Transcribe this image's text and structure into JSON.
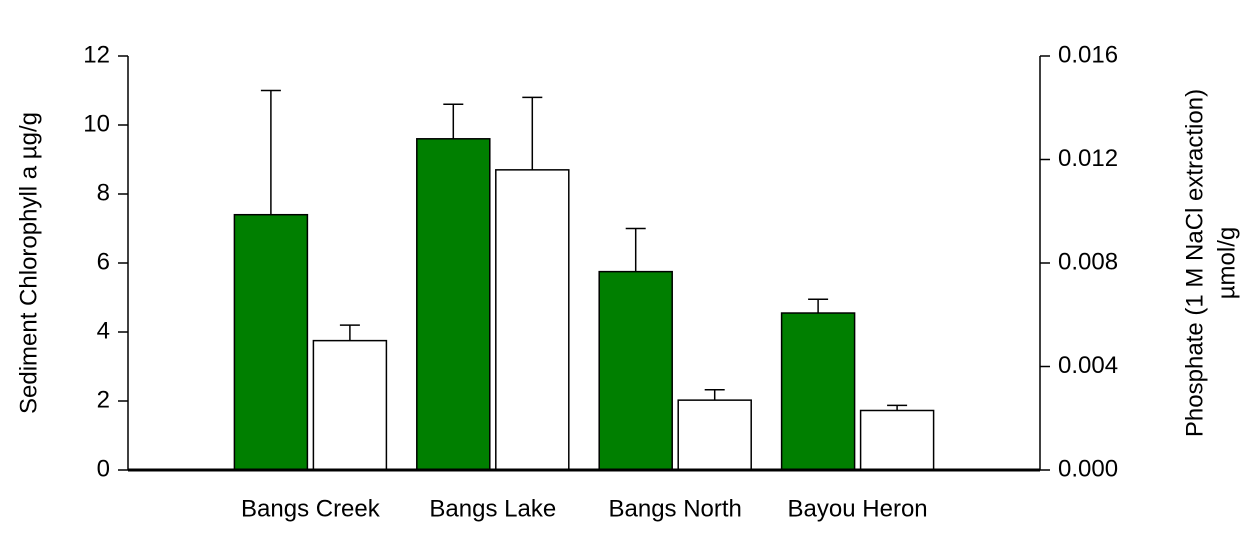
{
  "chart_data": {
    "type": "bar",
    "ylabel": "Sediment Chlorophyll a µg/g",
    "ylabel_color": "#007f00",
    "y2label": [
      "Phosphate (1 M NaCl extraction)",
      "µmol/g"
    ],
    "categories": [
      "Bangs Creek",
      "Bangs Lake",
      "Bangs North",
      "Bayou Heron"
    ],
    "series": [
      {
        "color": "#007f00",
        "values": [
          7.4,
          9.6,
          5.75,
          4.55
        ],
        "errors": [
          3.6,
          1.0,
          1.25,
          0.4
        ]
      },
      {
        "color": "#ffffff",
        "axis": "y2",
        "values": [
          0.005,
          0.0116,
          0.0027,
          0.0023
        ],
        "errors": [
          0.0006,
          0.0028,
          0.0004,
          0.0002
        ]
      }
    ],
    "ylim": [
      0,
      12
    ],
    "yticks": [
      0,
      2,
      4,
      6,
      8,
      10,
      12
    ],
    "y2lim": [
      0,
      0.016
    ],
    "y2ticks": [
      {
        "value": 0,
        "label": "0.000"
      },
      0.004,
      0.008,
      0.012,
      0.016
    ]
  }
}
